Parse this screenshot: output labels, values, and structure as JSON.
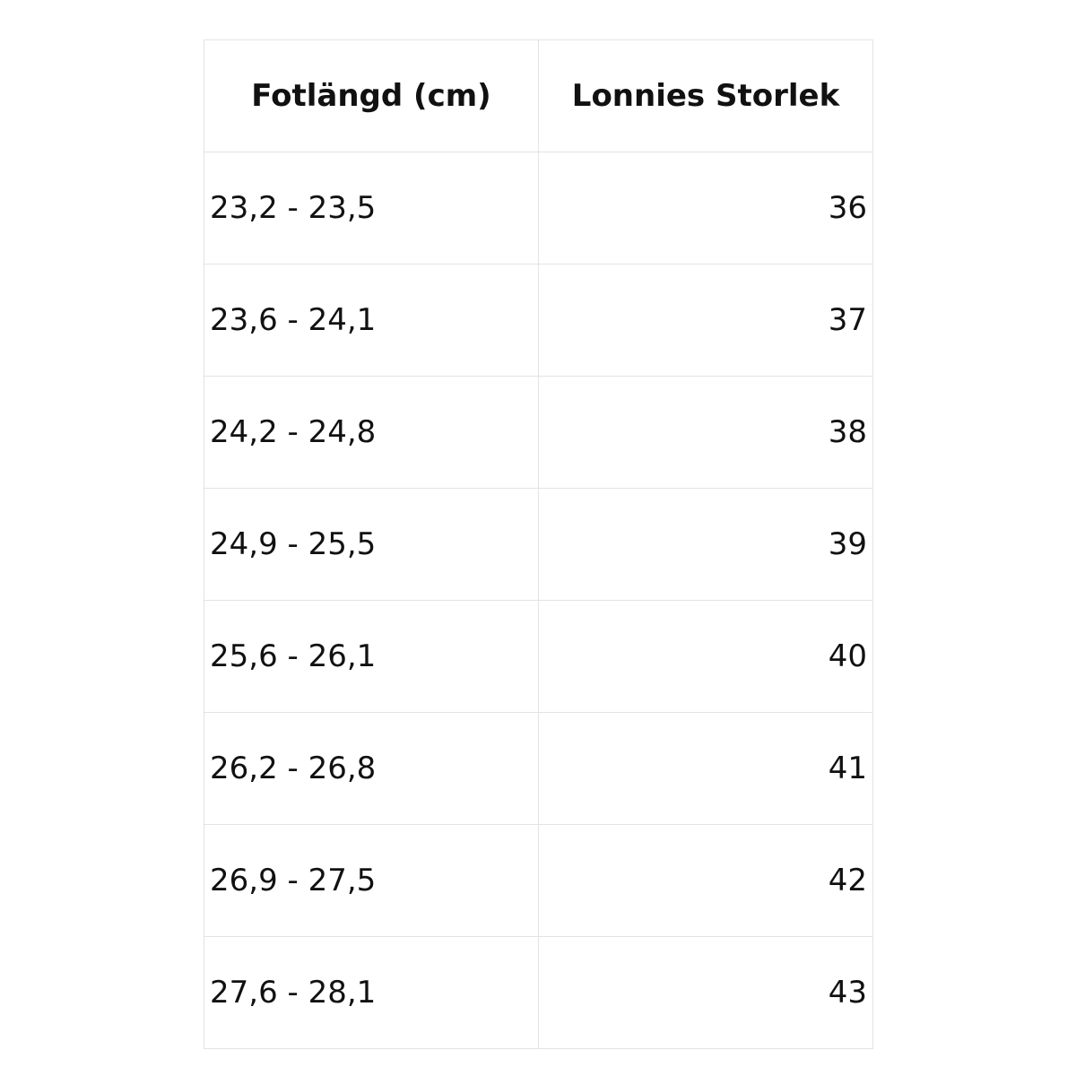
{
  "table": {
    "header": [
      "Fotlängd (cm)",
      "Lonnies Storlek"
    ],
    "rows": [
      [
        "23,2 - 23,5",
        36
      ],
      [
        "23,6 - 24,1",
        37
      ],
      [
        "24,2 - 24,8",
        38
      ],
      [
        "24,9 - 25,5",
        39
      ],
      [
        "25,6 - 26,1",
        40
      ],
      [
        "26,2 - 26,8",
        41
      ],
      [
        "26,9 - 27,5",
        42
      ],
      [
        "27,6 - 28,1",
        43
      ]
    ]
  }
}
